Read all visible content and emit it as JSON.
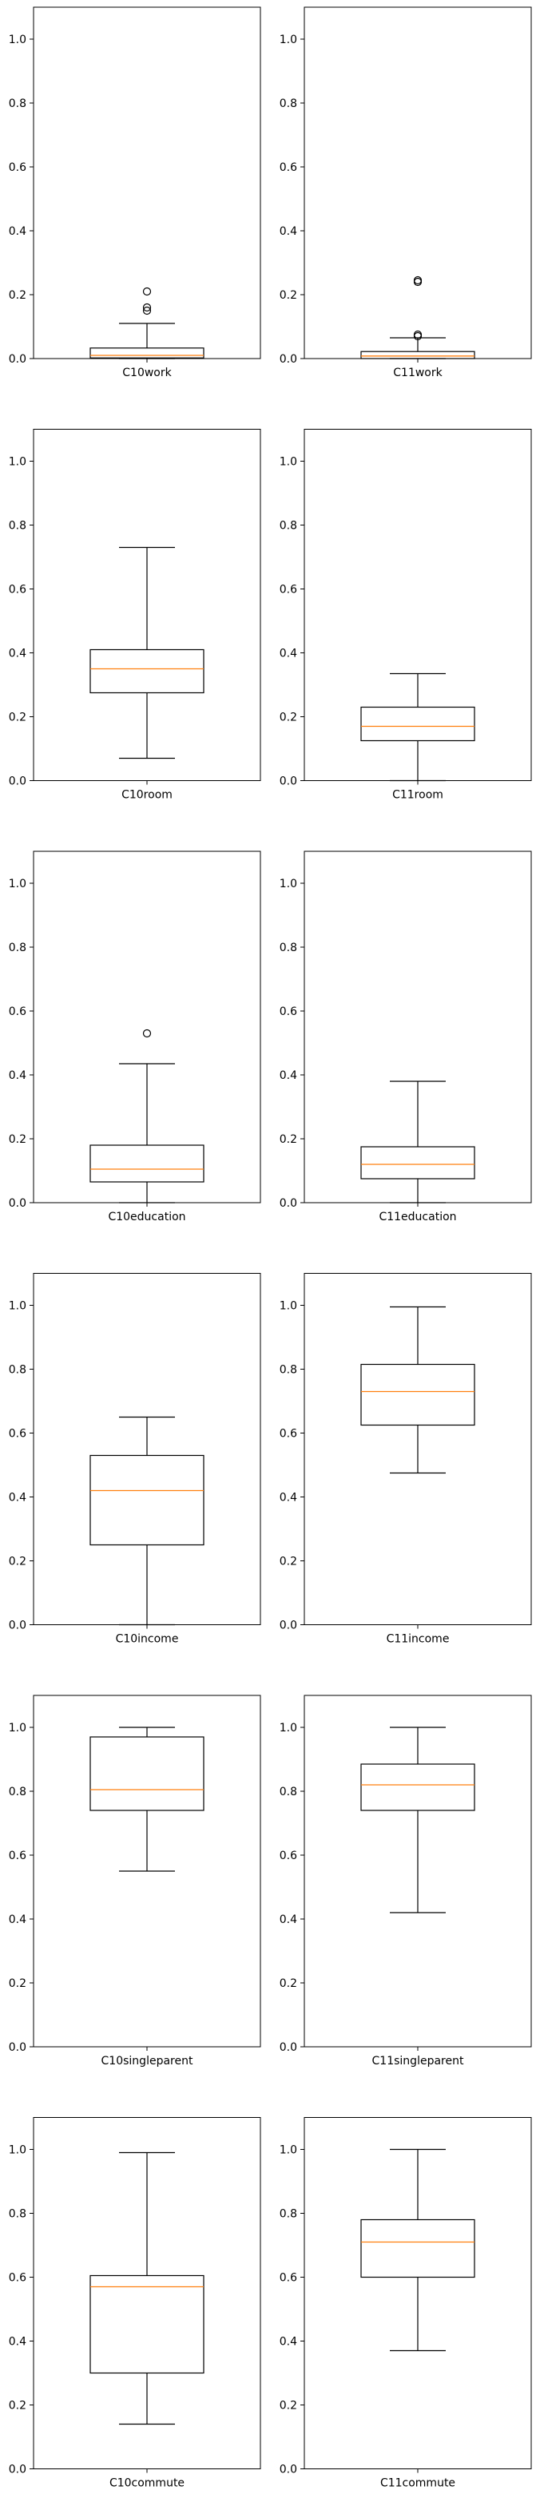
{
  "chart_data": [
    {
      "type": "box",
      "ylim": [
        0,
        1.1
      ],
      "yticks": [
        "0.0",
        "0.2",
        "0.4",
        "0.6",
        "0.8",
        "1.0"
      ],
      "category": "C10work",
      "stats": {
        "whisker_low": 0.0,
        "q1": 0.002,
        "median": 0.01,
        "q3": 0.033,
        "whisker_high": 0.11
      },
      "outliers": [
        0.15,
        0.16,
        0.21
      ]
    },
    {
      "type": "box",
      "ylim": [
        0,
        1.1
      ],
      "yticks": [
        "0.0",
        "0.2",
        "0.4",
        "0.6",
        "0.8",
        "1.0"
      ],
      "category": "C11work",
      "stats": {
        "whisker_low": 0.0,
        "q1": 0.0,
        "median": 0.008,
        "q3": 0.022,
        "whisker_high": 0.065
      },
      "outliers": [
        0.07,
        0.075,
        0.24,
        0.245
      ]
    },
    {
      "type": "box",
      "ylim": [
        0,
        1.1
      ],
      "yticks": [
        "0.0",
        "0.2",
        "0.4",
        "0.6",
        "0.8",
        "1.0"
      ],
      "category": "C10room",
      "stats": {
        "whisker_low": 0.07,
        "q1": 0.275,
        "median": 0.35,
        "q3": 0.41,
        "whisker_high": 0.73
      },
      "outliers": []
    },
    {
      "type": "box",
      "ylim": [
        0,
        1.1
      ],
      "yticks": [
        "0.0",
        "0.2",
        "0.4",
        "0.6",
        "0.8",
        "1.0"
      ],
      "category": "C11room",
      "stats": {
        "whisker_low": 0.0,
        "q1": 0.125,
        "median": 0.17,
        "q3": 0.23,
        "whisker_high": 0.335
      },
      "outliers": []
    },
    {
      "type": "box",
      "ylim": [
        0,
        1.1
      ],
      "yticks": [
        "0.0",
        "0.2",
        "0.4",
        "0.6",
        "0.8",
        "1.0"
      ],
      "category": "C10education",
      "stats": {
        "whisker_low": 0.0,
        "q1": 0.065,
        "median": 0.105,
        "q3": 0.18,
        "whisker_high": 0.435
      },
      "outliers": [
        0.53
      ]
    },
    {
      "type": "box",
      "ylim": [
        0,
        1.1
      ],
      "yticks": [
        "0.0",
        "0.2",
        "0.4",
        "0.6",
        "0.8",
        "1.0"
      ],
      "category": "C11education",
      "stats": {
        "whisker_low": 0.0,
        "q1": 0.075,
        "median": 0.12,
        "q3": 0.175,
        "whisker_high": 0.38
      },
      "outliers": []
    },
    {
      "type": "box",
      "ylim": [
        0,
        1.1
      ],
      "yticks": [
        "0.0",
        "0.2",
        "0.4",
        "0.6",
        "0.8",
        "1.0"
      ],
      "category": "C10income",
      "stats": {
        "whisker_low": 0.0,
        "q1": 0.25,
        "median": 0.42,
        "q3": 0.53,
        "whisker_high": 0.65
      },
      "outliers": []
    },
    {
      "type": "box",
      "ylim": [
        0,
        1.1
      ],
      "yticks": [
        "0.0",
        "0.2",
        "0.4",
        "0.6",
        "0.8",
        "1.0"
      ],
      "category": "C11income",
      "stats": {
        "whisker_low": 0.475,
        "q1": 0.625,
        "median": 0.73,
        "q3": 0.815,
        "whisker_high": 0.995
      },
      "outliers": []
    },
    {
      "type": "box",
      "ylim": [
        0,
        1.1
      ],
      "yticks": [
        "0.0",
        "0.2",
        "0.4",
        "0.6",
        "0.8",
        "1.0"
      ],
      "category": "C10singleparent",
      "stats": {
        "whisker_low": 0.55,
        "q1": 0.74,
        "median": 0.805,
        "q3": 0.97,
        "whisker_high": 1.0
      },
      "outliers": []
    },
    {
      "type": "box",
      "ylim": [
        0,
        1.1
      ],
      "yticks": [
        "0.0",
        "0.2",
        "0.4",
        "0.6",
        "0.8",
        "1.0"
      ],
      "category": "C11singleparent",
      "stats": {
        "whisker_low": 0.42,
        "q1": 0.74,
        "median": 0.82,
        "q3": 0.885,
        "whisker_high": 1.0
      },
      "outliers": []
    },
    {
      "type": "box",
      "ylim": [
        0,
        1.1
      ],
      "yticks": [
        "0.0",
        "0.2",
        "0.4",
        "0.6",
        "0.8",
        "1.0"
      ],
      "category": "C10commute",
      "stats": {
        "whisker_low": 0.14,
        "q1": 0.3,
        "median": 0.57,
        "q3": 0.605,
        "whisker_high": 0.99
      },
      "outliers": []
    },
    {
      "type": "box",
      "ylim": [
        0,
        1.1
      ],
      "yticks": [
        "0.0",
        "0.2",
        "0.4",
        "0.6",
        "0.8",
        "1.0"
      ],
      "category": "C11commute",
      "stats": {
        "whisker_low": 0.37,
        "q1": 0.6,
        "median": 0.71,
        "q3": 0.78,
        "whisker_high": 1.0
      },
      "outliers": []
    }
  ],
  "colors": {
    "box": "#000000",
    "median": "#ff7f0e",
    "background": "#ffffff"
  }
}
